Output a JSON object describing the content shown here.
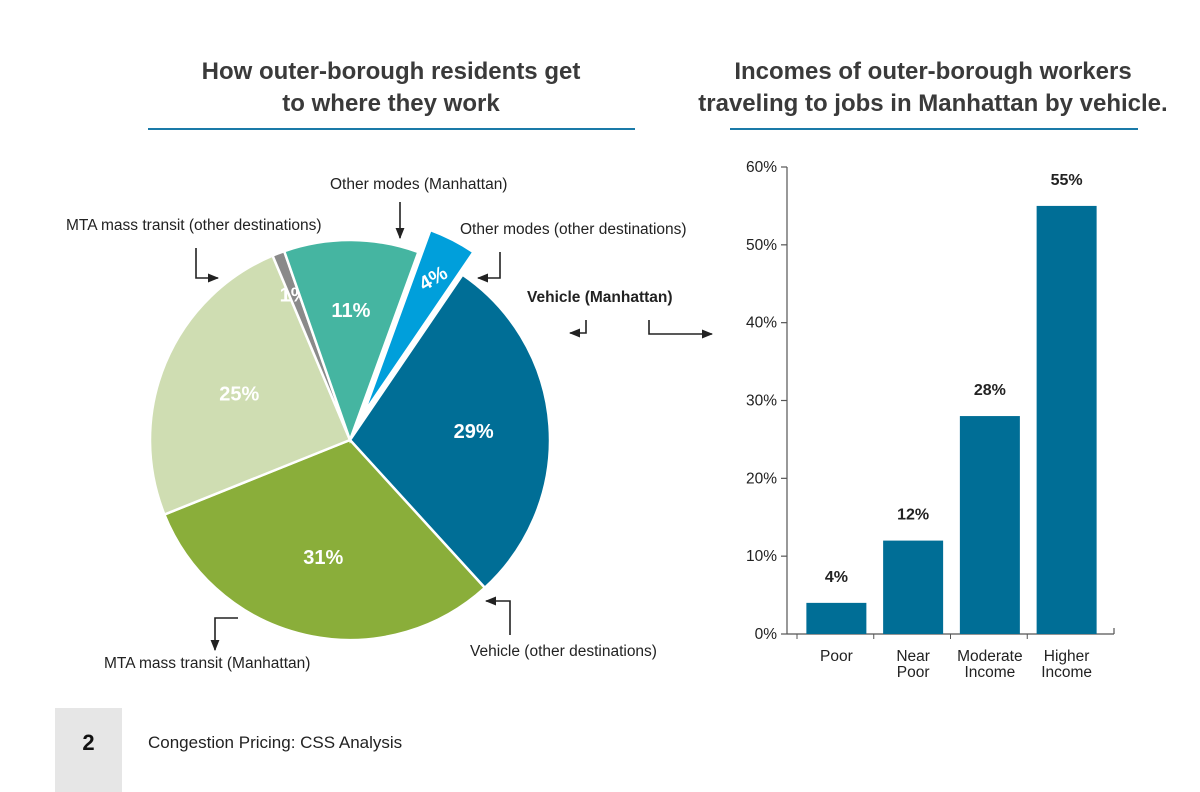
{
  "footer": {
    "page_number": "2",
    "text": "Congestion Pricing: CSS Analysis"
  },
  "chart_data": [
    {
      "type": "pie",
      "title_lines": [
        "How outer-borough residents get",
        "to where they work"
      ],
      "slices": [
        {
          "name": "Vehicle (Manhattan)",
          "value": 4,
          "label": "4%",
          "color": "#009fdb",
          "exploded": true,
          "bold": true
        },
        {
          "name": "Vehicle (other destinations)",
          "value": 29,
          "label": "29%",
          "color": "#006e96"
        },
        {
          "name": "MTA mass transit (Manhattan)",
          "value": 31,
          "label": "31%",
          "color": "#8aae3a"
        },
        {
          "name": "MTA mass transit (other destinations)",
          "value": 25,
          "label": "25%",
          "color": "#cfddb2"
        },
        {
          "name": "Other modes (Manhattan)",
          "value": 1,
          "label": "1%",
          "color": "#8a8a8a"
        },
        {
          "name": "Other modes (other destinations)",
          "value": 11,
          "label": "11%",
          "color": "#45b5a1"
        }
      ]
    },
    {
      "type": "bar",
      "title_lines": [
        "Incomes of outer-borough workers",
        "traveling to jobs in Manhattan by vehicle."
      ],
      "categories": [
        [
          "Poor"
        ],
        [
          "Near",
          "Poor"
        ],
        [
          "Moderate",
          "Income"
        ],
        [
          "Higher",
          "Income"
        ]
      ],
      "values": [
        4,
        12,
        28,
        55
      ],
      "value_labels": [
        "4%",
        "12%",
        "28%",
        "55%"
      ],
      "ylim": [
        0,
        60
      ],
      "yticks": [
        "0%",
        "10%",
        "20%",
        "30%",
        "40%",
        "50%",
        "60%"
      ],
      "color": "#006e96",
      "grid": false
    }
  ]
}
